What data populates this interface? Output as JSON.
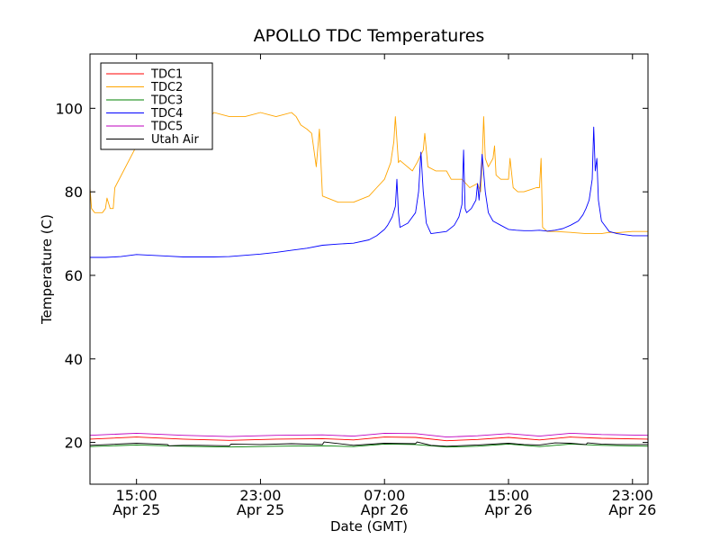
{
  "chart_data": {
    "type": "line",
    "title": "APOLLO TDC Temperatures",
    "xlabel": "Date (GMT)",
    "ylabel": "Temperature (C)",
    "xunit": "hours since 2014-04-25 11:00 GMT",
    "xlim": [
      0,
      36
    ],
    "ylim": [
      10,
      113
    ],
    "yticks": [
      20,
      40,
      60,
      80,
      100
    ],
    "xticks": [
      {
        "x": 3,
        "time": "15:00",
        "date": "Apr 25"
      },
      {
        "x": 11,
        "time": "23:00",
        "date": "Apr 25"
      },
      {
        "x": 19,
        "time": "07:00",
        "date": "Apr 26"
      },
      {
        "x": 27,
        "time": "15:00",
        "date": "Apr 26"
      },
      {
        "x": 35,
        "time": "23:00",
        "date": "Apr 26"
      }
    ],
    "legend_position": "top-left",
    "series": [
      {
        "name": "TDC1",
        "color": "#ff0000",
        "points": [
          [
            0,
            20.8
          ],
          [
            3,
            21.3
          ],
          [
            6,
            20.8
          ],
          [
            9,
            20.5
          ],
          [
            12,
            20.8
          ],
          [
            15,
            20.9
          ],
          [
            17,
            20.6
          ],
          [
            19,
            21.3
          ],
          [
            21,
            21.2
          ],
          [
            23,
            20.4
          ],
          [
            25,
            20.7
          ],
          [
            27,
            21.2
          ],
          [
            29,
            20.6
          ],
          [
            31,
            21.3
          ],
          [
            33,
            21.0
          ],
          [
            36,
            20.8
          ]
        ]
      },
      {
        "name": "TDC2",
        "color": "#ffa500",
        "points": [
          [
            0,
            81
          ],
          [
            0.1,
            76
          ],
          [
            0.3,
            75
          ],
          [
            0.8,
            75
          ],
          [
            1,
            76
          ],
          [
            1.1,
            78.5
          ],
          [
            1.3,
            76
          ],
          [
            1.5,
            76
          ],
          [
            1.6,
            81
          ],
          [
            3,
            91
          ],
          [
            4,
            97
          ],
          [
            5,
            96
          ],
          [
            6,
            98
          ],
          [
            7.5,
            97
          ],
          [
            8,
            99
          ],
          [
            9,
            98
          ],
          [
            10,
            98
          ],
          [
            11,
            99
          ],
          [
            12,
            98
          ],
          [
            13,
            99
          ],
          [
            13.3,
            98
          ],
          [
            13.6,
            96
          ],
          [
            14,
            95
          ],
          [
            14.3,
            94
          ],
          [
            14.6,
            86
          ],
          [
            14.8,
            95
          ],
          [
            15,
            79
          ],
          [
            16,
            77.5
          ],
          [
            17,
            77.5
          ],
          [
            18,
            79
          ],
          [
            18.5,
            81
          ],
          [
            19,
            83
          ],
          [
            19.4,
            87
          ],
          [
            19.6,
            92
          ],
          [
            19.7,
            98
          ],
          [
            19.9,
            87
          ],
          [
            20,
            87.5
          ],
          [
            20.8,
            85
          ],
          [
            21.1,
            87
          ],
          [
            21.5,
            90
          ],
          [
            21.6,
            94
          ],
          [
            21.8,
            86
          ],
          [
            22.3,
            85
          ],
          [
            23,
            85
          ],
          [
            23.3,
            83
          ],
          [
            24,
            83
          ],
          [
            24.5,
            81
          ],
          [
            25,
            82
          ],
          [
            25.2,
            80
          ],
          [
            25.3,
            87
          ],
          [
            25.4,
            98
          ],
          [
            25.5,
            88
          ],
          [
            25.7,
            86
          ],
          [
            26,
            88
          ],
          [
            26.1,
            91
          ],
          [
            26.2,
            84
          ],
          [
            26.5,
            83
          ],
          [
            27,
            83
          ],
          [
            27.1,
            88
          ],
          [
            27.3,
            81
          ],
          [
            27.6,
            80
          ],
          [
            28,
            80
          ],
          [
            28.4,
            80.5
          ],
          [
            28.8,
            81
          ],
          [
            29,
            81
          ],
          [
            29.1,
            88
          ],
          [
            29.2,
            71.5
          ],
          [
            29.5,
            70.5
          ],
          [
            30,
            70.5
          ],
          [
            31,
            70.3
          ],
          [
            32,
            70
          ],
          [
            33,
            70
          ],
          [
            33.5,
            70.3
          ],
          [
            34,
            70.2
          ],
          [
            35,
            70.5
          ],
          [
            36,
            70.5
          ]
        ]
      },
      {
        "name": "TDC3",
        "color": "#008000",
        "points": [
          [
            0,
            19.0
          ],
          [
            3,
            19.4
          ],
          [
            6,
            19.1
          ],
          [
            9,
            18.9
          ],
          [
            12,
            19.1
          ],
          [
            15,
            19.2
          ],
          [
            17,
            19.0
          ],
          [
            19,
            19.6
          ],
          [
            21,
            19.5
          ],
          [
            23,
            18.9
          ],
          [
            25,
            19.1
          ],
          [
            27,
            19.6
          ],
          [
            29,
            19.0
          ],
          [
            31,
            19.6
          ],
          [
            33,
            19.3
          ],
          [
            36,
            19.1
          ]
        ]
      },
      {
        "name": "TDC4",
        "color": "#0000ff",
        "points": [
          [
            0,
            64.3
          ],
          [
            1,
            64.3
          ],
          [
            2,
            64.5
          ],
          [
            3,
            65
          ],
          [
            4,
            64.8
          ],
          [
            5,
            64.6
          ],
          [
            6,
            64.4
          ],
          [
            7,
            64.4
          ],
          [
            8,
            64.4
          ],
          [
            9,
            64.5
          ],
          [
            10,
            64.8
          ],
          [
            11,
            65.1
          ],
          [
            12,
            65.5
          ],
          [
            13,
            66
          ],
          [
            14,
            66.5
          ],
          [
            15,
            67.2
          ],
          [
            16,
            67.5
          ],
          [
            17,
            67.7
          ],
          [
            18,
            68.5
          ],
          [
            18.5,
            69.5
          ],
          [
            19,
            71
          ],
          [
            19.2,
            72
          ],
          [
            19.5,
            74
          ],
          [
            19.7,
            76.5
          ],
          [
            19.8,
            83
          ],
          [
            19.9,
            75
          ],
          [
            20,
            71.5
          ],
          [
            20.5,
            72.5
          ],
          [
            21,
            75
          ],
          [
            21.2,
            80
          ],
          [
            21.35,
            89.5
          ],
          [
            21.5,
            80
          ],
          [
            21.7,
            72.5
          ],
          [
            22,
            70
          ],
          [
            23,
            70.5
          ],
          [
            23.5,
            72
          ],
          [
            23.8,
            74
          ],
          [
            24,
            77
          ],
          [
            24.1,
            90
          ],
          [
            24.2,
            76
          ],
          [
            24.3,
            75
          ],
          [
            24.6,
            76
          ],
          [
            24.9,
            78
          ],
          [
            25,
            82
          ],
          [
            25.1,
            78
          ],
          [
            25.2,
            83
          ],
          [
            25.3,
            89
          ],
          [
            25.5,
            80
          ],
          [
            25.7,
            75
          ],
          [
            26,
            73
          ],
          [
            26.5,
            72
          ],
          [
            27,
            71
          ],
          [
            27.5,
            70.8
          ],
          [
            28,
            70.7
          ],
          [
            28.5,
            70.7
          ],
          [
            29,
            70.8
          ],
          [
            29.5,
            70.6
          ],
          [
            30,
            70.8
          ],
          [
            30.5,
            71.2
          ],
          [
            31,
            72
          ],
          [
            31.5,
            73
          ],
          [
            31.8,
            74.5
          ],
          [
            32,
            76
          ],
          [
            32.2,
            78
          ],
          [
            32.4,
            83
          ],
          [
            32.5,
            95.5
          ],
          [
            32.6,
            85
          ],
          [
            32.7,
            88
          ],
          [
            32.8,
            78
          ],
          [
            33,
            73
          ],
          [
            33.5,
            70.5
          ],
          [
            34,
            70
          ],
          [
            35,
            69.5
          ],
          [
            36,
            69.5
          ]
        ]
      },
      {
        "name": "TDC5",
        "color": "#bf00bf",
        "points": [
          [
            0,
            21.7
          ],
          [
            3,
            22.2
          ],
          [
            6,
            21.7
          ],
          [
            9,
            21.4
          ],
          [
            12,
            21.7
          ],
          [
            15,
            21.8
          ],
          [
            17,
            21.5
          ],
          [
            19,
            22.2
          ],
          [
            21,
            22.1
          ],
          [
            23,
            21.3
          ],
          [
            25,
            21.6
          ],
          [
            27,
            22.1
          ],
          [
            29,
            21.5
          ],
          [
            31,
            22.2
          ],
          [
            33,
            21.9
          ],
          [
            36,
            21.7
          ]
        ]
      },
      {
        "name": "Utah Air",
        "color": "#000000",
        "points": [
          [
            0,
            19.3
          ],
          [
            3,
            19.8
          ],
          [
            5,
            19.5
          ],
          [
            5.1,
            19.2
          ],
          [
            6,
            19.3
          ],
          [
            7,
            19.3
          ],
          [
            9,
            19.2
          ],
          [
            9.1,
            19.6
          ],
          [
            11,
            19.5
          ],
          [
            13,
            19.7
          ],
          [
            15,
            19.5
          ],
          [
            15.1,
            20.1
          ],
          [
            17,
            19.3
          ],
          [
            19,
            19.8
          ],
          [
            21,
            19.7
          ],
          [
            21.1,
            20.1
          ],
          [
            22,
            19.3
          ],
          [
            23,
            19.1
          ],
          [
            25,
            19.4
          ],
          [
            27,
            19.8
          ],
          [
            28,
            19.5
          ],
          [
            29,
            19.4
          ],
          [
            30,
            19.9
          ],
          [
            31,
            19.8
          ],
          [
            32,
            19.5
          ],
          [
            32.1,
            19.9
          ],
          [
            33,
            19.6
          ],
          [
            34,
            19.5
          ],
          [
            36,
            19.5
          ]
        ]
      }
    ]
  }
}
